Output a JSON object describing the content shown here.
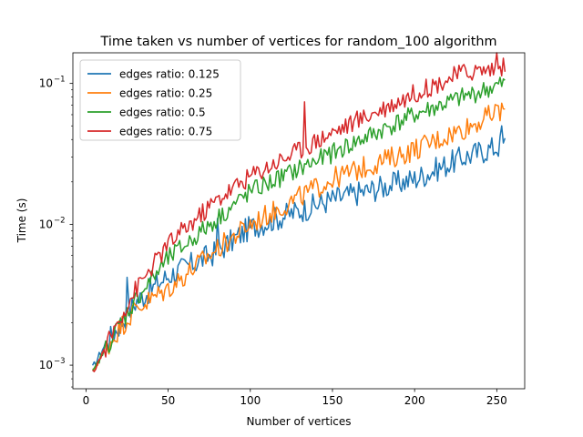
{
  "chart_data": {
    "type": "line",
    "title": "Time taken vs number of vertices for random_100 algorithm",
    "xlabel": "Number of vertices",
    "ylabel": "Time (s)",
    "yscale": "log",
    "xlim": [
      -8,
      267
    ],
    "ylim": [
      0.00068,
      0.022
    ],
    "x_ticks": [
      0,
      50,
      100,
      150,
      200,
      250
    ],
    "y_ticks": [
      {
        "value": 0.001,
        "base": "10",
        "exp": "−3"
      },
      {
        "value": 0.01,
        "base": "10",
        "exp": "−2"
      },
      {
        "value": 0.1,
        "base": "10",
        "exp": "−1"
      }
    ],
    "legend_position": "upper-left",
    "x_range": [
      4,
      255
    ],
    "series": [
      {
        "name": "edges ratio: 0.125",
        "color": "#1f77b4",
        "anchors": [
          [
            4,
            0.00095
          ],
          [
            10,
            0.0013
          ],
          [
            20,
            0.0019
          ],
          [
            30,
            0.0028
          ],
          [
            50,
            0.0043
          ],
          [
            80,
            0.0064
          ],
          [
            100,
            0.0095
          ],
          [
            150,
            0.015
          ],
          [
            200,
            0.021
          ],
          [
            230,
            0.03
          ],
          [
            255,
            0.037
          ]
        ],
        "noise": 0.09,
        "spikes": [
          [
            25,
            0.0042
          ],
          [
            80,
            0.011
          ],
          [
            253,
            0.05
          ]
        ]
      },
      {
        "name": "edges ratio: 0.25",
        "color": "#ff7f0e",
        "anchors": [
          [
            4,
            0.0009
          ],
          [
            10,
            0.0012
          ],
          [
            20,
            0.0018
          ],
          [
            30,
            0.0025
          ],
          [
            50,
            0.0035
          ],
          [
            80,
            0.0067
          ],
          [
            100,
            0.01
          ],
          [
            150,
            0.021
          ],
          [
            200,
            0.034
          ],
          [
            230,
            0.048
          ],
          [
            255,
            0.066
          ]
        ],
        "noise": 0.08,
        "spikes": [
          [
            250,
            0.07
          ]
        ]
      },
      {
        "name": "edges ratio: 0.5",
        "color": "#2ca02c",
        "anchors": [
          [
            4,
            0.00088
          ],
          [
            10,
            0.0012
          ],
          [
            20,
            0.0019
          ],
          [
            30,
            0.0029
          ],
          [
            50,
            0.0057
          ],
          [
            80,
            0.011
          ],
          [
            100,
            0.017
          ],
          [
            150,
            0.032
          ],
          [
            200,
            0.06
          ],
          [
            230,
            0.08
          ],
          [
            255,
            0.1
          ]
        ],
        "noise": 0.07,
        "spikes": []
      },
      {
        "name": "edges ratio: 0.75",
        "color": "#d62728",
        "anchors": [
          [
            4,
            0.00088
          ],
          [
            10,
            0.0012
          ],
          [
            20,
            0.0021
          ],
          [
            30,
            0.0034
          ],
          [
            50,
            0.0072
          ],
          [
            80,
            0.015
          ],
          [
            100,
            0.022
          ],
          [
            150,
            0.045
          ],
          [
            200,
            0.085
          ],
          [
            230,
            0.12
          ],
          [
            255,
            0.13
          ]
        ],
        "noise": 0.07,
        "spikes": [
          [
            133,
            0.074
          ],
          [
            250,
            0.165
          ]
        ]
      }
    ]
  }
}
